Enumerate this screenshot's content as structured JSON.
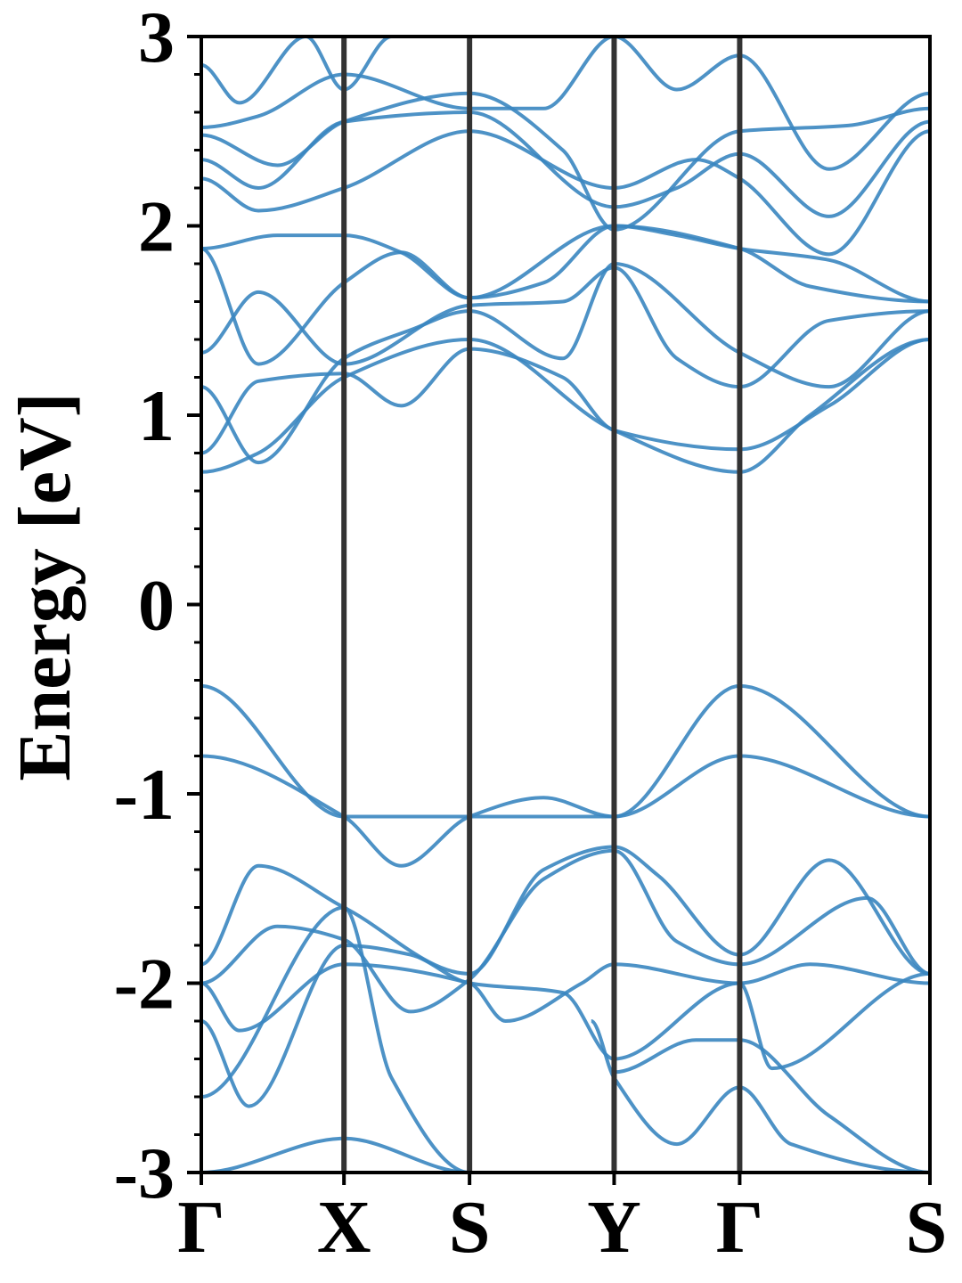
{
  "chart_data": {
    "type": "line",
    "title": "",
    "xlabel": "",
    "ylabel": "Energy [eV]",
    "ylim": [
      -3,
      3
    ],
    "y_ticks": [
      "3",
      "2",
      "1",
      "0",
      "-1",
      "-2",
      "-3"
    ],
    "y_minor_step": 0.2,
    "k_path": [
      "Γ",
      "X",
      "S",
      "Y",
      "Γ",
      "S"
    ],
    "k_positions": [
      0,
      0.75,
      1.41,
      2.17,
      2.83,
      3.83
    ],
    "series_color": "#3a86c0",
    "divider_color": "#333333",
    "series": [
      {
        "x": [
          0,
          0.75,
          1.41,
          2.17,
          2.83,
          3.83
        ],
        "y": [
          -0.43,
          -1.12,
          -1.12,
          -1.12,
          -0.43,
          -1.12
        ],
        "shape": "valence"
      },
      {
        "x": [
          0,
          0.75,
          1.05,
          1.41,
          1.8,
          2.17,
          2.83,
          3.83
        ],
        "y": [
          -0.8,
          -1.12,
          -1.38,
          -1.12,
          -1.02,
          -1.12,
          -0.8,
          -1.12
        ]
      },
      {
        "x": [
          0,
          0.3,
          0.75,
          1.41,
          1.8,
          2.17,
          2.4,
          2.83,
          3.3,
          3.83
        ],
        "y": [
          -1.9,
          -1.38,
          -1.6,
          -1.95,
          -1.4,
          -1.28,
          -1.43,
          -1.85,
          -1.35,
          -1.95
        ]
      },
      {
        "x": [
          0,
          0.4,
          0.75,
          1.1,
          1.41,
          1.8,
          2.17,
          2.5,
          2.83,
          3.5,
          3.83
        ],
        "y": [
          -2.0,
          -1.7,
          -1.77,
          -2.15,
          -1.98,
          -1.45,
          -1.3,
          -1.78,
          -1.9,
          -1.55,
          -1.95
        ]
      },
      {
        "x": [
          0,
          0.2,
          0.75,
          1.41,
          1.6,
          2.0,
          2.17,
          2.83,
          3.2,
          3.83
        ],
        "y": [
          -2.0,
          -2.25,
          -1.9,
          -2.0,
          -2.2,
          -2.0,
          -1.9,
          -2.0,
          -1.9,
          -2.0
        ]
      },
      {
        "x": [
          0,
          0.25,
          0.75,
          1.1,
          1.41,
          1.9,
          2.17,
          2.83,
          3.0,
          3.83
        ],
        "y": [
          -2.2,
          -2.65,
          -1.8,
          -1.85,
          -2.0,
          -2.05,
          -2.4,
          -2.0,
          -2.45,
          -1.95
        ]
      },
      {
        "x": [
          0,
          0.75,
          1.0,
          1.41
        ],
        "y": [
          -2.6,
          -1.6,
          -2.5,
          -3.0
        ]
      },
      {
        "x": [
          0,
          0.75,
          1.41
        ],
        "y": [
          -3.0,
          -2.82,
          -3.0
        ]
      },
      {
        "x": [
          2.17,
          2.6,
          2.83,
          3.3,
          3.83
        ],
        "y": [
          -2.47,
          -2.3,
          -2.3,
          -2.7,
          -3.0
        ]
      },
      {
        "x": [
          2.05,
          2.17,
          2.5,
          2.83,
          3.1,
          3.83
        ],
        "y": [
          -2.2,
          -2.5,
          -2.85,
          -2.55,
          -2.85,
          -3.0
        ]
      },
      {
        "x": [
          0,
          0.3,
          0.75,
          1.41,
          2.17,
          2.83,
          3.2,
          3.83
        ],
        "y": [
          0.7,
          0.8,
          1.2,
          1.4,
          0.92,
          0.7,
          1.0,
          1.4
        ]
      },
      {
        "x": [
          0,
          0.3,
          0.75,
          1.05,
          1.41,
          1.9,
          2.17,
          2.83,
          3.3,
          3.83
        ],
        "y": [
          0.8,
          1.18,
          1.22,
          1.05,
          1.35,
          1.2,
          0.92,
          0.82,
          1.05,
          1.4
        ]
      },
      {
        "x": [
          0,
          0.3,
          0.75,
          1.1,
          1.41,
          1.9,
          2.17,
          2.83,
          3.3,
          3.83
        ],
        "y": [
          1.15,
          0.75,
          1.3,
          1.45,
          1.55,
          1.3,
          1.8,
          1.33,
          1.15,
          1.55
        ]
      },
      {
        "x": [
          0,
          0.3,
          0.75,
          1.41,
          1.9,
          2.17,
          2.5,
          2.83,
          3.3,
          3.83
        ],
        "y": [
          1.33,
          1.65,
          1.27,
          1.58,
          1.6,
          1.78,
          1.3,
          1.15,
          1.5,
          1.55
        ]
      },
      {
        "x": [
          0,
          0.3,
          0.75,
          1.05,
          1.41,
          1.8,
          2.17,
          2.83,
          3.2,
          3.83
        ],
        "y": [
          1.88,
          1.27,
          1.7,
          1.86,
          1.62,
          1.7,
          2.0,
          1.88,
          1.68,
          1.6
        ]
      },
      {
        "x": [
          0,
          0.4,
          0.75,
          1.05,
          1.41,
          2.17,
          2.5,
          2.83,
          3.3,
          3.83
        ],
        "y": [
          1.88,
          1.95,
          1.95,
          1.86,
          1.62,
          2.0,
          1.95,
          1.88,
          1.82,
          1.6
        ]
      },
      {
        "x": [
          0,
          0.3,
          0.75,
          1.41,
          2.17,
          2.6,
          2.83,
          3.3,
          3.83
        ],
        "y": [
          2.25,
          2.08,
          2.2,
          2.5,
          2.2,
          2.35,
          2.25,
          1.85,
          2.5
        ]
      },
      {
        "x": [
          0,
          0.3,
          0.75,
          1.41,
          2.17,
          2.5,
          2.83,
          3.3,
          3.83
        ],
        "y": [
          2.35,
          2.2,
          2.55,
          2.6,
          2.1,
          2.2,
          2.38,
          2.05,
          2.55
        ]
      },
      {
        "x": [
          0,
          0.4,
          0.75,
          1.41,
          1.9,
          2.17,
          2.83,
          3.4,
          3.83
        ],
        "y": [
          2.48,
          2.32,
          2.55,
          2.7,
          2.4,
          1.98,
          2.5,
          2.53,
          2.62
        ]
      },
      {
        "x": [
          0,
          0.3,
          0.75,
          1.41,
          1.8,
          2.17,
          2.5,
          2.83,
          3.3,
          3.83
        ],
        "y": [
          2.52,
          2.58,
          2.8,
          2.62,
          2.62,
          3.0,
          2.72,
          2.9,
          2.3,
          2.7
        ]
      },
      {
        "x": [
          0,
          0.2,
          0.55,
          0.75,
          1.0
        ],
        "y": [
          2.85,
          2.65,
          3.0,
          2.72,
          3.0
        ]
      }
    ]
  }
}
